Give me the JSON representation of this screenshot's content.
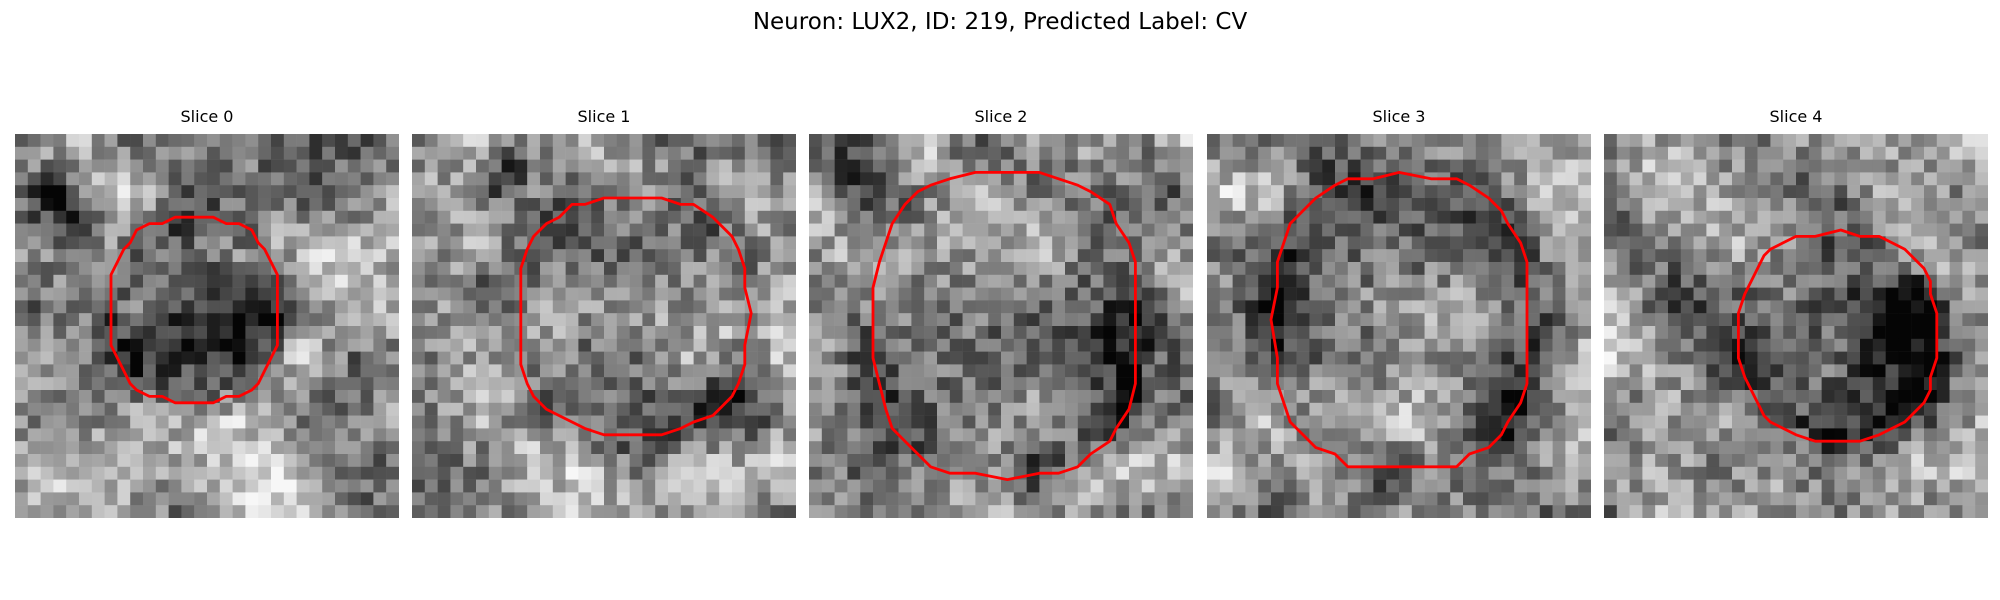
{
  "figure": {
    "title": "Neuron: LUX2, ID: 219, Predicted Label: CV"
  },
  "colors": {
    "background": "#ffffff",
    "contour": "#ff0000",
    "colormap": "gray"
  },
  "slices": [
    {
      "label": "Slice 0"
    },
    {
      "label": "Slice 1"
    },
    {
      "label": "Slice 2"
    },
    {
      "label": "Slice 3"
    },
    {
      "label": "Slice 4"
    }
  ]
}
